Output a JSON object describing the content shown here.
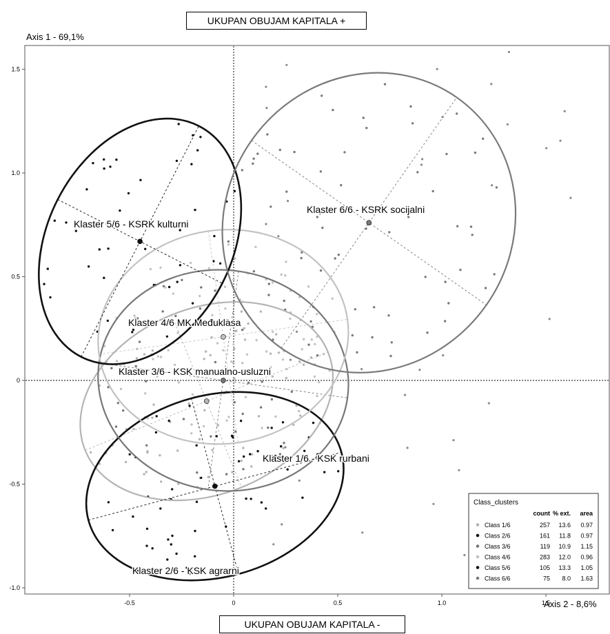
{
  "top_label": "UKUPAN OBUJAM KAPITALA +",
  "bottom_label": "UKUPAN OBUJAM KAPITALA -",
  "axis1_label": "Axis 1 - 69,1%",
  "axis2_label": "Axis 2 - 8,6%",
  "chart_data": {
    "type": "scatter",
    "xlim": [
      -1.0,
      1.8
    ],
    "ylim": [
      -1.05,
      1.6
    ],
    "x_ticks": [
      "-0.5",
      "0",
      "0.5",
      "1.0",
      "1.5"
    ],
    "x_tick_values": [
      -0.5,
      0,
      0.5,
      1.0,
      1.5
    ],
    "y_ticks": [
      "1.5",
      "1.0",
      "0.5",
      "0",
      "-0.5",
      "-1.0"
    ],
    "y_tick_values": [
      1.5,
      1.0,
      0.5,
      0,
      -0.5,
      -1.0
    ],
    "colors": {
      "class1": "#b4b4b4",
      "class2": "#111111",
      "class3": "#777777",
      "class4": "#c2c2c2",
      "class5": "#111111",
      "class6": "#7a7a7a"
    },
    "clusters": [
      {
        "id": "class1",
        "label": "Klaster 1/6 - KSK rurbani",
        "center": [
          -0.13,
          -0.1
        ],
        "point_count": 70
      },
      {
        "id": "class2",
        "label": "Klaster 2/6 - KSK agrarni",
        "center": [
          -0.09,
          -0.51
        ],
        "point_count": 55
      },
      {
        "id": "class3",
        "label": "Klaster 3/6 - KSK manualno-usluzni",
        "center": [
          -0.05,
          0.0
        ],
        "point_count": 45
      },
      {
        "id": "class4",
        "label": "Klaster 4/6 MK Međuklasa",
        "center": [
          -0.05,
          0.21
        ],
        "point_count": 90
      },
      {
        "id": "class5",
        "label": "Klaster 5/6 - KSRK kulturni",
        "center": [
          -0.45,
          0.67
        ],
        "point_count": 45
      },
      {
        "id": "class6",
        "label": "Klaster 6/6 - KSRK socijalni",
        "center": [
          0.65,
          0.76
        ],
        "point_count": 60
      }
    ],
    "legend": {
      "position": "bottom-right",
      "title": "Class_clusters",
      "headers": [
        "count",
        "% ext.",
        "area"
      ],
      "rows": [
        {
          "name": "Class 1/6",
          "count": "257",
          "ext": "13.6",
          "area": "0.97"
        },
        {
          "name": "Class 2/6",
          "count": "161",
          "ext": "11.8",
          "area": "0.97"
        },
        {
          "name": "Class 3/6",
          "count": "119",
          "ext": "10.9",
          "area": "1.15"
        },
        {
          "name": "Class 4/6",
          "count": "283",
          "ext": "12.0",
          "area": "0.96"
        },
        {
          "name": "Class 5/6",
          "count": "105",
          "ext": "13.3",
          "area": "1.05"
        },
        {
          "name": "Class 6/6",
          "count": "75",
          "ext": "8.0",
          "area": "1.63"
        }
      ]
    }
  }
}
